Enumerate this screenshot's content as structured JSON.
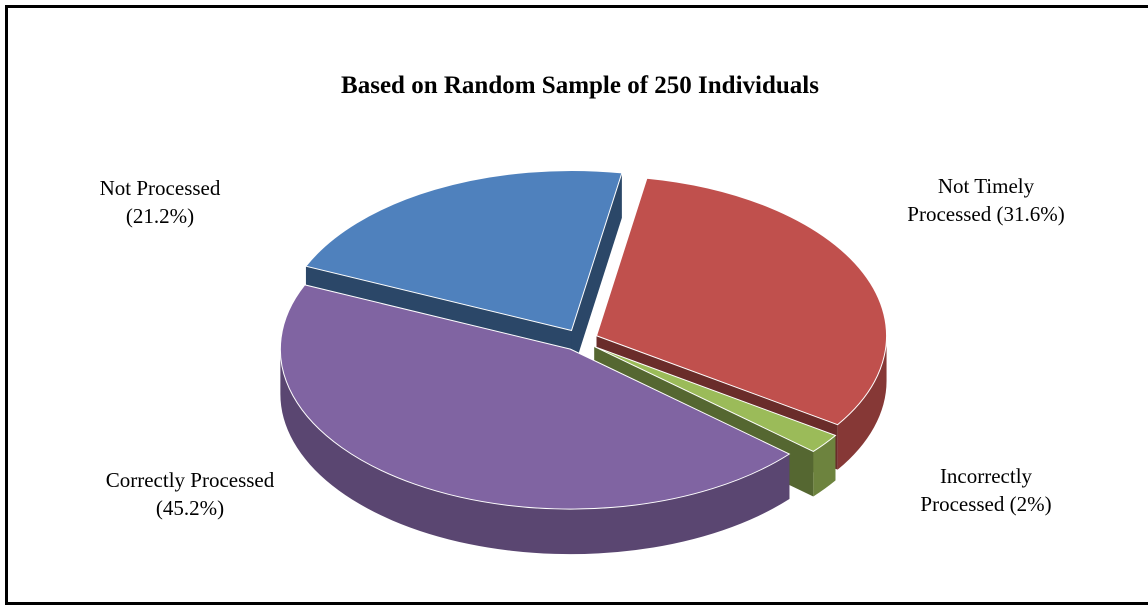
{
  "chart_data": {
    "type": "pie",
    "title": "Based on Random Sample of 250 Individuals",
    "slices": [
      {
        "name": "Not Timely",
        "name2": "Processed (31.6%)",
        "value": 31.6,
        "color": "#C0504D"
      },
      {
        "name": "Incorrectly",
        "name2": "Processed (2%)",
        "value": 2,
        "color": "#9BBB59"
      },
      {
        "name": "Correctly Processed",
        "name2": "(45.2%)",
        "value": 45.2,
        "color": "#8064A2"
      },
      {
        "name": "Not Processed",
        "name2": "(21.2%)",
        "value": 21.2,
        "color": "#4F81BD"
      }
    ]
  }
}
